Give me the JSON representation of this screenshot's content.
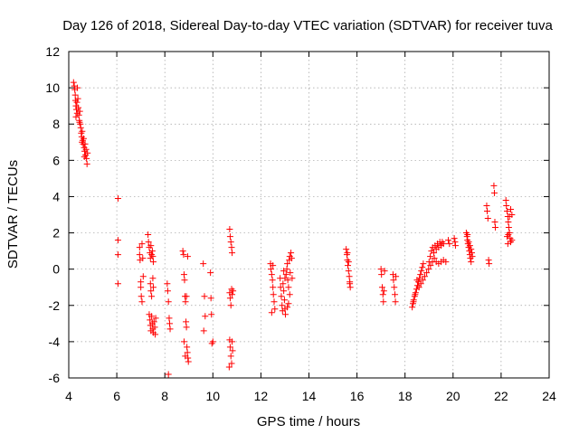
{
  "chart_data": {
    "type": "scatter",
    "title": "Day 126 of 2018, Sidereal Day-to-day VTEC variation (SDTVAR) for receiver tuva",
    "xlabel": "GPS time / hours",
    "ylabel": "SDTVAR / TECUs",
    "xlim": [
      4,
      24
    ],
    "ylim": [
      -6,
      12
    ],
    "xticks": [
      4,
      6,
      8,
      10,
      12,
      14,
      16,
      18,
      20,
      22,
      24
    ],
    "yticks": [
      -6,
      -4,
      -2,
      0,
      2,
      4,
      6,
      8,
      10,
      12
    ],
    "grid": true,
    "marker": "+",
    "color": "#ff0000",
    "series": [
      {
        "name": "tuva",
        "points": [
          [
            4.2,
            10.3
          ],
          [
            4.23,
            10.1
          ],
          [
            4.25,
            9.9
          ],
          [
            4.27,
            9.6
          ],
          [
            4.28,
            9.3
          ],
          [
            4.3,
            9.0
          ],
          [
            4.32,
            8.8
          ],
          [
            4.35,
            8.6
          ],
          [
            4.38,
            9.4
          ],
          [
            4.4,
            8.9
          ],
          [
            4.42,
            8.5
          ],
          [
            4.44,
            8.2
          ],
          [
            4.46,
            8.7
          ],
          [
            4.48,
            8.0
          ],
          [
            4.5,
            7.8
          ],
          [
            4.52,
            7.5
          ],
          [
            4.54,
            7.3
          ],
          [
            4.56,
            7.6
          ],
          [
            4.58,
            7.1
          ],
          [
            4.6,
            6.9
          ],
          [
            4.62,
            7.2
          ],
          [
            4.64,
            6.7
          ],
          [
            4.66,
            6.5
          ],
          [
            4.68,
            6.9
          ],
          [
            4.7,
            6.3
          ],
          [
            4.72,
            6.6
          ],
          [
            4.74,
            6.1
          ],
          [
            4.76,
            5.8
          ],
          [
            4.78,
            6.4
          ],
          [
            4.3,
            8.4
          ],
          [
            4.45,
            8.1
          ],
          [
            4.55,
            7.0
          ],
          [
            4.65,
            6.2
          ],
          [
            4.36,
            10.0
          ],
          [
            4.34,
            9.2
          ],
          [
            6.05,
            3.9
          ],
          [
            6.05,
            1.6
          ],
          [
            6.05,
            0.8
          ],
          [
            6.05,
            -0.8
          ],
          [
            6.95,
            1.2
          ],
          [
            6.95,
            0.8
          ],
          [
            6.97,
            0.5
          ],
          [
            7.0,
            -0.7
          ],
          [
            7.0,
            -1.0
          ],
          [
            7.02,
            -1.5
          ],
          [
            7.05,
            -1.8
          ],
          [
            7.05,
            1.4
          ],
          [
            7.08,
            0.6
          ],
          [
            7.1,
            -0.4
          ],
          [
            7.3,
            1.9
          ],
          [
            7.32,
            1.5
          ],
          [
            7.35,
            1.2
          ],
          [
            7.38,
            0.9
          ],
          [
            7.4,
            0.6
          ],
          [
            7.42,
            1.3
          ],
          [
            7.45,
            0.8
          ],
          [
            7.48,
            1.0
          ],
          [
            7.5,
            0.7
          ],
          [
            7.52,
            0.4
          ],
          [
            7.4,
            -0.8
          ],
          [
            7.42,
            -1.2
          ],
          [
            7.45,
            -1.5
          ],
          [
            7.5,
            -0.5
          ],
          [
            7.52,
            -1.0
          ],
          [
            7.35,
            -2.5
          ],
          [
            7.38,
            -2.8
          ],
          [
            7.4,
            -3.1
          ],
          [
            7.42,
            -3.4
          ],
          [
            7.45,
            -2.6
          ],
          [
            7.48,
            -3.0
          ],
          [
            7.5,
            -3.3
          ],
          [
            7.52,
            -3.5
          ],
          [
            7.55,
            -2.9
          ],
          [
            7.58,
            -3.2
          ],
          [
            7.6,
            -3.6
          ],
          [
            7.62,
            -2.7
          ],
          [
            8.1,
            -0.8
          ],
          [
            8.12,
            -1.2
          ],
          [
            8.15,
            -1.8
          ],
          [
            8.18,
            -2.7
          ],
          [
            8.2,
            -3.0
          ],
          [
            8.22,
            -3.3
          ],
          [
            8.15,
            -5.8
          ],
          [
            8.75,
            1.0
          ],
          [
            8.78,
            0.8
          ],
          [
            8.8,
            -0.3
          ],
          [
            8.82,
            -0.6
          ],
          [
            8.84,
            -1.5
          ],
          [
            8.86,
            -1.8
          ],
          [
            8.88,
            -2.9
          ],
          [
            8.9,
            -3.2
          ],
          [
            8.92,
            -4.3
          ],
          [
            8.94,
            -4.6
          ],
          [
            8.96,
            -4.9
          ],
          [
            8.98,
            -5.1
          ],
          [
            8.8,
            -4.0
          ],
          [
            8.85,
            -4.8
          ],
          [
            8.9,
            -1.5
          ],
          [
            8.95,
            0.7
          ],
          [
            9.6,
            0.3
          ],
          [
            9.65,
            -1.5
          ],
          [
            9.68,
            -2.6
          ],
          [
            9.62,
            -3.4
          ],
          [
            9.9,
            -0.2
          ],
          [
            9.92,
            -1.6
          ],
          [
            9.94,
            -2.5
          ],
          [
            9.96,
            -4.1
          ],
          [
            10.0,
            -4.0
          ],
          [
            10.7,
            2.2
          ],
          [
            10.72,
            1.8
          ],
          [
            10.75,
            1.5
          ],
          [
            10.78,
            1.2
          ],
          [
            10.8,
            0.9
          ],
          [
            10.7,
            -1.3
          ],
          [
            10.72,
            -1.6
          ],
          [
            10.75,
            -2.0
          ],
          [
            10.78,
            -1.1
          ],
          [
            10.8,
            -1.4
          ],
          [
            10.7,
            -3.9
          ],
          [
            10.72,
            -4.3
          ],
          [
            10.75,
            -4.8
          ],
          [
            10.78,
            -5.2
          ],
          [
            10.8,
            -4.0
          ],
          [
            10.82,
            -4.5
          ],
          [
            10.68,
            -5.4
          ],
          [
            10.84,
            -1.2
          ],
          [
            12.4,
            0.3
          ],
          [
            12.42,
            0.0
          ],
          [
            12.45,
            -0.3
          ],
          [
            12.48,
            -0.6
          ],
          [
            12.5,
            -1.0
          ],
          [
            12.52,
            -1.4
          ],
          [
            12.55,
            -1.8
          ],
          [
            12.58,
            -2.2
          ],
          [
            12.45,
            -2.4
          ],
          [
            12.5,
            0.2
          ],
          [
            12.8,
            -0.5
          ],
          [
            12.82,
            -1.0
          ],
          [
            12.85,
            -1.5
          ],
          [
            12.88,
            -2.0
          ],
          [
            12.9,
            -2.3
          ],
          [
            12.92,
            -0.8
          ],
          [
            12.95,
            -1.2
          ],
          [
            12.98,
            -1.7
          ],
          [
            13.0,
            -2.2
          ],
          [
            13.02,
            -2.5
          ],
          [
            13.05,
            -0.3
          ],
          [
            13.08,
            0.0
          ],
          [
            13.1,
            0.3
          ],
          [
            13.12,
            -0.6
          ],
          [
            13.15,
            -1.0
          ],
          [
            13.18,
            0.5
          ],
          [
            13.2,
            0.7
          ],
          [
            13.22,
            -0.2
          ],
          [
            13.25,
            0.9
          ],
          [
            13.28,
            0.6
          ],
          [
            13.3,
            -0.5
          ],
          [
            13.0,
            -0.5
          ],
          [
            12.95,
            -0.1
          ],
          [
            13.15,
            -1.9
          ],
          [
            13.2,
            -1.4
          ],
          [
            13.1,
            -2.1
          ],
          [
            15.55,
            1.1
          ],
          [
            15.58,
            0.8
          ],
          [
            15.6,
            0.5
          ],
          [
            15.62,
            0.2
          ],
          [
            15.65,
            -0.1
          ],
          [
            15.68,
            -0.4
          ],
          [
            15.7,
            -0.7
          ],
          [
            15.72,
            -1.0
          ],
          [
            15.6,
            0.9
          ],
          [
            15.65,
            0.4
          ],
          [
            15.7,
            -0.8
          ],
          [
            17.0,
            0.0
          ],
          [
            17.02,
            -0.3
          ],
          [
            17.05,
            -1.0
          ],
          [
            17.08,
            -1.4
          ],
          [
            17.1,
            -1.8
          ],
          [
            17.12,
            -1.2
          ],
          [
            17.15,
            -0.1
          ],
          [
            17.5,
            -0.3
          ],
          [
            17.52,
            -0.6
          ],
          [
            17.55,
            -1.0
          ],
          [
            17.58,
            -1.4
          ],
          [
            17.6,
            -1.8
          ],
          [
            17.62,
            -0.4
          ],
          [
            18.3,
            -2.1
          ],
          [
            18.33,
            -1.9
          ],
          [
            18.36,
            -1.7
          ],
          [
            18.4,
            -1.5
          ],
          [
            18.44,
            -1.3
          ],
          [
            18.48,
            -1.1
          ],
          [
            18.52,
            -0.9
          ],
          [
            18.56,
            -0.7
          ],
          [
            18.6,
            -0.5
          ],
          [
            18.64,
            -0.3
          ],
          [
            18.68,
            -0.1
          ],
          [
            18.72,
            0.1
          ],
          [
            18.76,
            0.3
          ],
          [
            18.35,
            -1.8
          ],
          [
            18.42,
            -1.4
          ],
          [
            18.5,
            -0.6
          ],
          [
            18.58,
            -1.0
          ],
          [
            18.66,
            -0.8
          ],
          [
            18.74,
            -0.6
          ],
          [
            18.82,
            -0.4
          ],
          [
            18.9,
            -0.2
          ],
          [
            18.98,
            0.0
          ],
          [
            19.06,
            0.2
          ],
          [
            19.14,
            0.4
          ],
          [
            19.22,
            0.6
          ],
          [
            19.3,
            0.4
          ],
          [
            19.0,
            0.4
          ],
          [
            19.05,
            0.7
          ],
          [
            19.1,
            1.0
          ],
          [
            19.15,
            1.2
          ],
          [
            19.2,
            0.9
          ],
          [
            19.25,
            1.3
          ],
          [
            19.3,
            1.1
          ],
          [
            19.35,
            1.4
          ],
          [
            19.4,
            1.2
          ],
          [
            19.45,
            1.5
          ],
          [
            19.5,
            1.3
          ],
          [
            19.55,
            1.5
          ],
          [
            19.6,
            1.4
          ],
          [
            19.4,
            0.3
          ],
          [
            19.5,
            0.4
          ],
          [
            19.6,
            0.5
          ],
          [
            19.7,
            0.4
          ],
          [
            19.8,
            1.6
          ],
          [
            19.85,
            1.4
          ],
          [
            20.05,
            1.7
          ],
          [
            20.08,
            1.5
          ],
          [
            20.1,
            1.3
          ],
          [
            20.55,
            2.0
          ],
          [
            20.58,
            1.8
          ],
          [
            20.6,
            1.6
          ],
          [
            20.62,
            1.4
          ],
          [
            20.65,
            1.2
          ],
          [
            20.68,
            1.0
          ],
          [
            20.7,
            0.8
          ],
          [
            20.72,
            0.6
          ],
          [
            20.75,
            0.4
          ],
          [
            20.6,
            1.9
          ],
          [
            20.65,
            1.5
          ],
          [
            20.7,
            1.3
          ],
          [
            20.75,
            1.1
          ],
          [
            20.78,
            0.9
          ],
          [
            20.8,
            0.7
          ],
          [
            21.4,
            3.5
          ],
          [
            21.42,
            3.2
          ],
          [
            21.45,
            2.8
          ],
          [
            21.48,
            0.5
          ],
          [
            21.5,
            0.3
          ],
          [
            21.7,
            4.6
          ],
          [
            21.72,
            4.2
          ],
          [
            21.74,
            2.6
          ],
          [
            21.76,
            2.3
          ],
          [
            22.2,
            3.8
          ],
          [
            22.22,
            3.5
          ],
          [
            22.25,
            3.2
          ],
          [
            22.28,
            2.9
          ],
          [
            22.3,
            2.6
          ],
          [
            22.32,
            2.3
          ],
          [
            22.35,
            2.0
          ],
          [
            22.38,
            1.7
          ],
          [
            22.4,
            1.5
          ],
          [
            22.25,
            1.8
          ],
          [
            22.3,
            1.9
          ],
          [
            22.35,
            2.9
          ],
          [
            22.4,
            3.3
          ],
          [
            22.45,
            3.0
          ],
          [
            22.45,
            1.6
          ],
          [
            22.28,
            1.4
          ]
        ]
      }
    ]
  }
}
